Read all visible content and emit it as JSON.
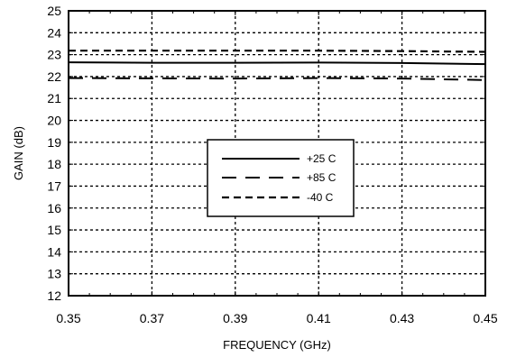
{
  "chart_data": {
    "type": "line",
    "title": "",
    "xlabel": "FREQUENCY (GHz)",
    "ylabel": "GAIN (dB)",
    "xlim": [
      0.35,
      0.45
    ],
    "ylim": [
      12,
      25
    ],
    "x_ticks": [
      "0.35",
      "0.37",
      "0.39",
      "0.41",
      "0.43",
      "0.45"
    ],
    "y_ticks": [
      "12",
      "13",
      "14",
      "15",
      "16",
      "17",
      "18",
      "19",
      "20",
      "21",
      "22",
      "23",
      "24",
      "25"
    ],
    "grid": true,
    "legend_position": "center",
    "series": [
      {
        "name": "+25 C",
        "line_style": "solid",
        "color": "#000000",
        "x": [
          0.35,
          0.37,
          0.39,
          0.41,
          0.43,
          0.45
        ],
        "y": [
          22.65,
          22.63,
          22.63,
          22.64,
          22.62,
          22.57
        ]
      },
      {
        "name": "+85 C",
        "line_style": "long-dash",
        "color": "#000000",
        "x": [
          0.35,
          0.37,
          0.39,
          0.41,
          0.43,
          0.45
        ],
        "y": [
          21.93,
          21.92,
          21.91,
          21.93,
          21.91,
          21.84
        ]
      },
      {
        "name": "-40 C",
        "line_style": "short-dash",
        "color": "#000000",
        "x": [
          0.35,
          0.37,
          0.39,
          0.41,
          0.43,
          0.45
        ],
        "y": [
          23.18,
          23.18,
          23.18,
          23.18,
          23.16,
          23.13
        ]
      }
    ]
  }
}
